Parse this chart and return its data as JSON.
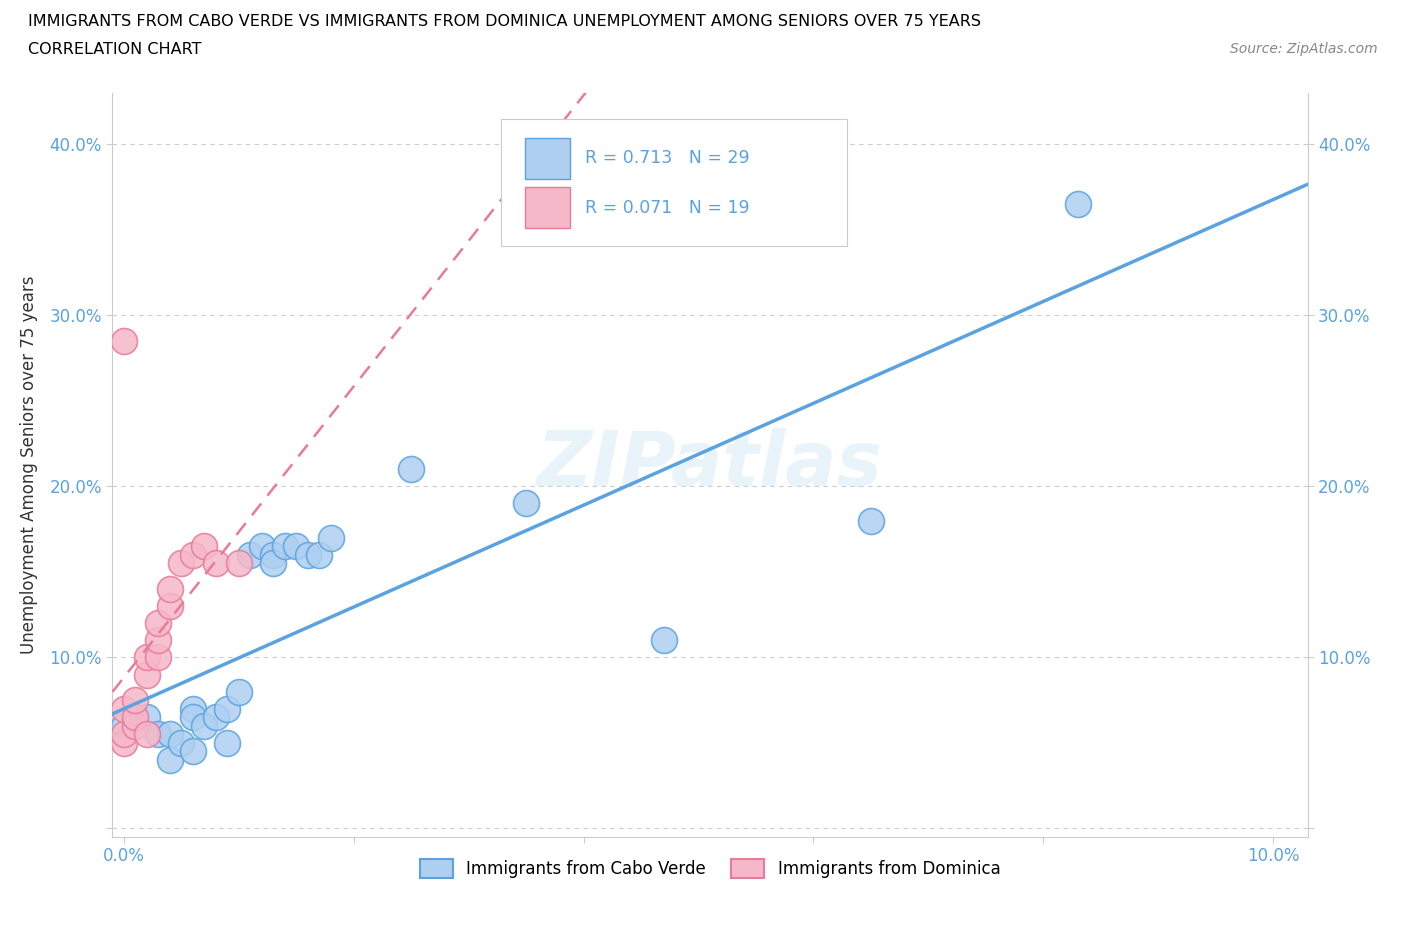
{
  "title_line1": "IMMIGRANTS FROM CABO VERDE VS IMMIGRANTS FROM DOMINICA UNEMPLOYMENT AMONG SENIORS OVER 75 YEARS",
  "title_line2": "CORRELATION CHART",
  "source_text": "Source: ZipAtlas.com",
  "ylabel": "Unemployment Among Seniors over 75 years",
  "cabo_verde_R": 0.713,
  "cabo_verde_N": 29,
  "dominica_R": 0.071,
  "dominica_N": 19,
  "cabo_verde_color": "#aecff0",
  "cabo_verde_line_color": "#5ba3e0",
  "dominica_color": "#f5b8c8",
  "dominica_line_color": "#e87a9a",
  "watermark": "ZIPatlas",
  "xlim": [
    -0.001,
    0.103
  ],
  "ylim": [
    -0.005,
    0.43
  ],
  "cabo_verde_x": [
    0.0,
    0.001,
    0.002,
    0.003,
    0.004,
    0.004,
    0.005,
    0.006,
    0.006,
    0.006,
    0.007,
    0.008,
    0.009,
    0.009,
    0.01,
    0.011,
    0.012,
    0.013,
    0.013,
    0.014,
    0.015,
    0.016,
    0.017,
    0.018,
    0.025,
    0.035,
    0.047,
    0.065,
    0.083
  ],
  "cabo_verde_y": [
    0.06,
    0.065,
    0.065,
    0.055,
    0.055,
    0.04,
    0.05,
    0.045,
    0.07,
    0.065,
    0.06,
    0.065,
    0.07,
    0.05,
    0.08,
    0.16,
    0.165,
    0.16,
    0.155,
    0.165,
    0.165,
    0.16,
    0.16,
    0.17,
    0.21,
    0.19,
    0.11,
    0.18,
    0.365
  ],
  "dominica_x": [
    0.0,
    0.0,
    0.0,
    0.001,
    0.001,
    0.001,
    0.002,
    0.002,
    0.002,
    0.003,
    0.003,
    0.003,
    0.004,
    0.004,
    0.005,
    0.006,
    0.007,
    0.008,
    0.01
  ],
  "dominica_y": [
    0.05,
    0.055,
    0.07,
    0.06,
    0.065,
    0.075,
    0.055,
    0.09,
    0.1,
    0.1,
    0.11,
    0.12,
    0.13,
    0.14,
    0.155,
    0.16,
    0.165,
    0.155,
    0.155
  ],
  "dominica_outlier_x": [
    0.0
  ],
  "dominica_outlier_y": [
    0.285
  ]
}
